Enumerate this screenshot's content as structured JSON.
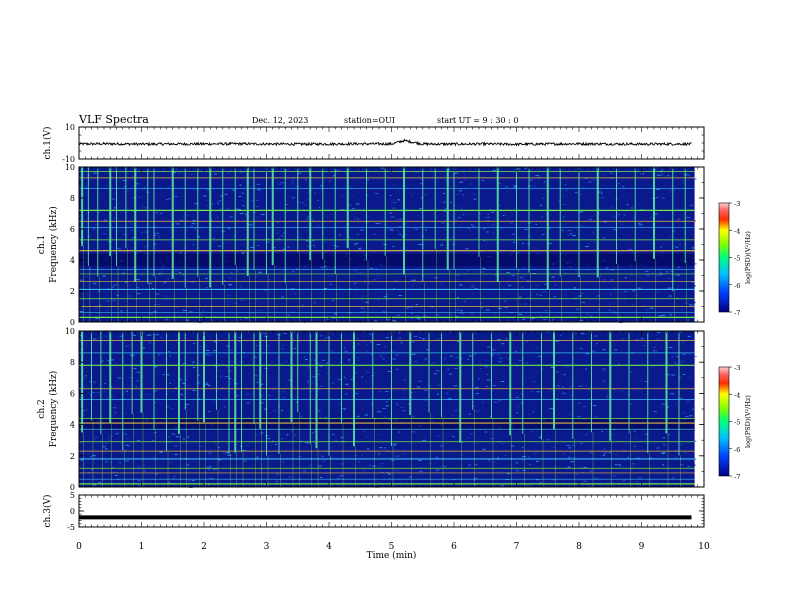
{
  "header": {
    "title": "VLF Spectra",
    "date": "Dec. 12, 2023",
    "station": "station=OUI",
    "start_ut": "start  UT =   9 : 30 : 0"
  },
  "chart_data": [
    {
      "type": "line",
      "panel": "ch1-waveform",
      "ylabel": "ch.1(V)",
      "ylim": [
        -10,
        10
      ],
      "yticks": [
        10,
        -10
      ],
      "x": [
        0,
        0.5,
        1,
        1.5,
        2,
        2.5,
        3,
        3.5,
        4,
        4.5,
        5,
        5.2,
        5.5,
        6,
        6.5,
        7,
        7.5,
        8,
        8.5,
        9,
        9.5,
        9.8
      ],
      "values": [
        -0.6,
        -0.5,
        -0.7,
        -0.6,
        -0.6,
        -0.5,
        -0.6,
        -0.7,
        -0.6,
        -0.5,
        -0.6,
        1.5,
        -0.6,
        -0.7,
        -0.6,
        -0.8,
        -0.6,
        -0.5,
        -0.6,
        -0.7,
        -0.6,
        -0.6
      ]
    },
    {
      "type": "heatmap",
      "panel": "ch1-spectrogram",
      "ylabel": "ch.1\nFrequency (kHz)",
      "ylim": [
        0,
        10
      ],
      "yticks": [
        0,
        2,
        4,
        6,
        8,
        10
      ],
      "colorbar": {
        "label": "log(PSD)(V²/Hz)",
        "range": [
          -7,
          -3
        ],
        "ticks": [
          "-3",
          "-4",
          "-5",
          "-6",
          "-7"
        ]
      },
      "background_level": -6.8,
      "horizontal_lines_khz": [
        0.3,
        0.6,
        1.0,
        1.5,
        2.1,
        2.6,
        3.1,
        3.4,
        4.6,
        5.3,
        6.1,
        6.5,
        7.2,
        8.6,
        9.3,
        9.7
      ],
      "impulsive_events_min": [
        0.05,
        0.15,
        0.3,
        0.5,
        0.6,
        0.75,
        0.9,
        1.1,
        1.2,
        1.5,
        1.7,
        1.9,
        2.1,
        2.3,
        2.5,
        2.7,
        2.8,
        3.0,
        3.1,
        3.3,
        3.5,
        3.7,
        3.9,
        4.1,
        4.3,
        4.6,
        4.9,
        5.2,
        5.5,
        5.7,
        5.9,
        6.0,
        6.4,
        6.7,
        7.0,
        7.2,
        7.5,
        7.7,
        8.0,
        8.3,
        8.6,
        8.9,
        9.2,
        9.5,
        9.7
      ]
    },
    {
      "type": "heatmap",
      "panel": "ch2-spectrogram",
      "ylabel": "ch.2\nFrequency (kHz)",
      "ylim": [
        0,
        10
      ],
      "yticks": [
        0,
        2,
        4,
        6,
        8,
        10
      ],
      "colorbar": {
        "label": "log(PSD)(V²/Hz)",
        "range": [
          -7,
          -3
        ],
        "ticks": [
          "-3",
          "-4",
          "-5",
          "-6",
          "-7"
        ]
      },
      "background_level": -6.3,
      "horizontal_lines_khz": [
        0.2,
        0.5,
        0.9,
        1.2,
        1.8,
        2.3,
        2.9,
        3.7,
        4.1,
        4.4,
        5.6,
        6.3,
        7.8,
        8.6,
        9.4
      ],
      "impulsive_events_min": [
        0.05,
        0.2,
        0.35,
        0.5,
        0.7,
        0.85,
        1.0,
        1.2,
        1.4,
        1.6,
        1.7,
        1.9,
        2.0,
        2.2,
        2.4,
        2.5,
        2.6,
        2.8,
        2.9,
        3.0,
        3.2,
        3.4,
        3.5,
        3.7,
        3.8,
        4.0,
        4.2,
        4.4,
        4.7,
        5.0,
        5.3,
        5.6,
        5.8,
        6.1,
        6.3,
        6.6,
        6.9,
        7.1,
        7.4,
        7.6,
        7.9,
        8.2,
        8.5,
        8.8,
        9.1,
        9.4,
        9.6
      ]
    },
    {
      "type": "line",
      "panel": "ch3-waveform",
      "ylabel": "ch.3(V)",
      "ylim": [
        -5,
        5
      ],
      "yticks": [
        5,
        0,
        -5
      ],
      "x": [
        0,
        9.8
      ],
      "values": [
        -2.0,
        -2.0
      ]
    }
  ],
  "xaxis": {
    "label": "Time (min)",
    "xlim": [
      0,
      10
    ],
    "ticks": [
      "0",
      "1",
      "2",
      "3",
      "4",
      "5",
      "6",
      "7",
      "8",
      "9",
      "10"
    ]
  },
  "colors": {
    "trace": "#000000",
    "spec_background": "#0a1a8c",
    "spec_line": "#7dff3a",
    "spec_event": "#5cf0a0"
  }
}
